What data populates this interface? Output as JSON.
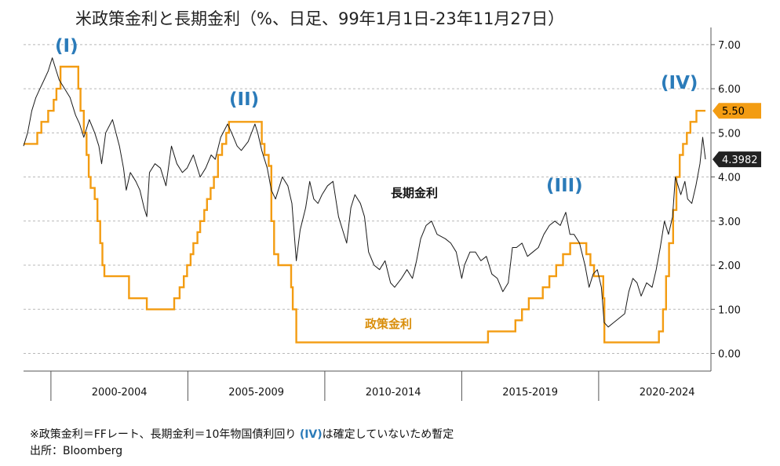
{
  "chart_data": {
    "type": "line",
    "title": "米政策金利と長期金利（%、日足、99年1月1日-23年11月27日）",
    "y_axis": {
      "ticks": [
        "7.00",
        "6.00",
        "5.00",
        "4.00",
        "3.00",
        "2.00",
        "1.00",
        "0.00"
      ],
      "tick_values": [
        7,
        6,
        5,
        4,
        3,
        2,
        1,
        0
      ],
      "ylim": [
        -0.4,
        7.3
      ],
      "position": "right",
      "grid": "dashed-horizontal"
    },
    "x_axis": {
      "range": [
        1999.0,
        2024.1
      ],
      "period_labels": [
        "2000-2004",
        "2005-2009",
        "2010-2014",
        "2015-2019",
        "2020-2024"
      ],
      "dividers": [
        2000,
        2005,
        2010,
        2015,
        2020
      ],
      "period_centers": [
        2002.5,
        2007.5,
        2012.5,
        2017.5,
        2022.5
      ]
    },
    "series": [
      {
        "name": "政策金利",
        "color": "#f39c12",
        "style": "step",
        "points": [
          [
            1999.0,
            4.75
          ],
          [
            1999.5,
            4.75
          ],
          [
            1999.5,
            5.0
          ],
          [
            1999.65,
            5.0
          ],
          [
            1999.65,
            5.25
          ],
          [
            1999.9,
            5.25
          ],
          [
            1999.9,
            5.5
          ],
          [
            2000.1,
            5.5
          ],
          [
            2000.1,
            5.75
          ],
          [
            2000.2,
            5.75
          ],
          [
            2000.2,
            6.0
          ],
          [
            2000.35,
            6.0
          ],
          [
            2000.35,
            6.5
          ],
          [
            2001.0,
            6.5
          ],
          [
            2001.0,
            6.0
          ],
          [
            2001.08,
            6.0
          ],
          [
            2001.08,
            5.5
          ],
          [
            2001.2,
            5.5
          ],
          [
            2001.2,
            5.0
          ],
          [
            2001.3,
            5.0
          ],
          [
            2001.3,
            4.5
          ],
          [
            2001.38,
            4.5
          ],
          [
            2001.38,
            4.0
          ],
          [
            2001.45,
            4.0
          ],
          [
            2001.45,
            3.75
          ],
          [
            2001.6,
            3.75
          ],
          [
            2001.6,
            3.5
          ],
          [
            2001.7,
            3.5
          ],
          [
            2001.7,
            3.0
          ],
          [
            2001.8,
            3.0
          ],
          [
            2001.8,
            2.5
          ],
          [
            2001.88,
            2.5
          ],
          [
            2001.88,
            2.0
          ],
          [
            2001.95,
            2.0
          ],
          [
            2001.95,
            1.75
          ],
          [
            2002.85,
            1.75
          ],
          [
            2002.85,
            1.25
          ],
          [
            2003.5,
            1.25
          ],
          [
            2003.5,
            1.0
          ],
          [
            2004.5,
            1.0
          ],
          [
            2004.5,
            1.25
          ],
          [
            2004.7,
            1.25
          ],
          [
            2004.7,
            1.5
          ],
          [
            2004.85,
            1.5
          ],
          [
            2004.85,
            1.75
          ],
          [
            2004.97,
            1.75
          ],
          [
            2004.97,
            2.0
          ],
          [
            2005.1,
            2.0
          ],
          [
            2005.1,
            2.25
          ],
          [
            2005.2,
            2.25
          ],
          [
            2005.2,
            2.5
          ],
          [
            2005.35,
            2.5
          ],
          [
            2005.35,
            2.75
          ],
          [
            2005.45,
            2.75
          ],
          [
            2005.45,
            3.0
          ],
          [
            2005.6,
            3.0
          ],
          [
            2005.6,
            3.25
          ],
          [
            2005.7,
            3.25
          ],
          [
            2005.7,
            3.5
          ],
          [
            2005.83,
            3.5
          ],
          [
            2005.83,
            3.75
          ],
          [
            2005.95,
            3.75
          ],
          [
            2005.95,
            4.0
          ],
          [
            2006.1,
            4.0
          ],
          [
            2006.1,
            4.5
          ],
          [
            2006.25,
            4.5
          ],
          [
            2006.25,
            4.75
          ],
          [
            2006.4,
            4.75
          ],
          [
            2006.4,
            5.0
          ],
          [
            2006.5,
            5.0
          ],
          [
            2006.5,
            5.25
          ],
          [
            2007.7,
            5.25
          ],
          [
            2007.7,
            4.75
          ],
          [
            2007.8,
            4.75
          ],
          [
            2007.8,
            4.5
          ],
          [
            2007.95,
            4.5
          ],
          [
            2007.95,
            4.25
          ],
          [
            2008.05,
            4.25
          ],
          [
            2008.05,
            3.0
          ],
          [
            2008.15,
            3.0
          ],
          [
            2008.15,
            2.25
          ],
          [
            2008.3,
            2.25
          ],
          [
            2008.3,
            2.0
          ],
          [
            2008.77,
            2.0
          ],
          [
            2008.77,
            1.5
          ],
          [
            2008.83,
            1.5
          ],
          [
            2008.83,
            1.0
          ],
          [
            2008.96,
            1.0
          ],
          [
            2008.96,
            0.25
          ],
          [
            2015.96,
            0.25
          ],
          [
            2015.96,
            0.5
          ],
          [
            2016.96,
            0.5
          ],
          [
            2016.96,
            0.75
          ],
          [
            2017.2,
            0.75
          ],
          [
            2017.2,
            1.0
          ],
          [
            2017.45,
            1.0
          ],
          [
            2017.45,
            1.25
          ],
          [
            2017.96,
            1.25
          ],
          [
            2017.96,
            1.5
          ],
          [
            2018.2,
            1.5
          ],
          [
            2018.2,
            1.75
          ],
          [
            2018.45,
            1.75
          ],
          [
            2018.45,
            2.0
          ],
          [
            2018.7,
            2.0
          ],
          [
            2018.7,
            2.25
          ],
          [
            2018.96,
            2.25
          ],
          [
            2018.96,
            2.5
          ],
          [
            2019.55,
            2.5
          ],
          [
            2019.55,
            2.25
          ],
          [
            2019.7,
            2.25
          ],
          [
            2019.7,
            2.0
          ],
          [
            2019.83,
            2.0
          ],
          [
            2019.83,
            1.75
          ],
          [
            2020.17,
            1.75
          ],
          [
            2020.17,
            1.25
          ],
          [
            2020.21,
            1.25
          ],
          [
            2020.21,
            0.25
          ],
          [
            2022.2,
            0.25
          ],
          [
            2022.2,
            0.5
          ],
          [
            2022.35,
            0.5
          ],
          [
            2022.35,
            1.0
          ],
          [
            2022.46,
            1.0
          ],
          [
            2022.46,
            1.75
          ],
          [
            2022.57,
            1.75
          ],
          [
            2022.57,
            2.5
          ],
          [
            2022.72,
            2.5
          ],
          [
            2022.72,
            3.25
          ],
          [
            2022.84,
            3.25
          ],
          [
            2022.84,
            4.0
          ],
          [
            2022.96,
            4.0
          ],
          [
            2022.96,
            4.5
          ],
          [
            2023.08,
            4.5
          ],
          [
            2023.08,
            4.75
          ],
          [
            2023.22,
            4.75
          ],
          [
            2023.22,
            5.0
          ],
          [
            2023.35,
            5.0
          ],
          [
            2023.35,
            5.25
          ],
          [
            2023.57,
            5.25
          ],
          [
            2023.57,
            5.5
          ],
          [
            2023.9,
            5.5
          ]
        ]
      },
      {
        "name": "長期金利",
        "color": "#1a1a1a",
        "style": "line",
        "points": [
          [
            1999.0,
            4.7
          ],
          [
            1999.15,
            5.0
          ],
          [
            1999.3,
            5.5
          ],
          [
            1999.45,
            5.8
          ],
          [
            1999.6,
            6.0
          ],
          [
            1999.75,
            6.2
          ],
          [
            1999.9,
            6.4
          ],
          [
            2000.05,
            6.7
          ],
          [
            2000.15,
            6.5
          ],
          [
            2000.3,
            6.2
          ],
          [
            2000.5,
            6.0
          ],
          [
            2000.7,
            5.8
          ],
          [
            2000.9,
            5.4
          ],
          [
            2001.05,
            5.2
          ],
          [
            2001.2,
            4.9
          ],
          [
            2001.4,
            5.3
          ],
          [
            2001.6,
            5.0
          ],
          [
            2001.75,
            4.7
          ],
          [
            2001.85,
            4.3
          ],
          [
            2002.0,
            5.0
          ],
          [
            2002.25,
            5.3
          ],
          [
            2002.5,
            4.7
          ],
          [
            2002.65,
            4.2
          ],
          [
            2002.75,
            3.7
          ],
          [
            2002.9,
            4.1
          ],
          [
            2003.1,
            3.9
          ],
          [
            2003.25,
            3.7
          ],
          [
            2003.4,
            3.3
          ],
          [
            2003.5,
            3.1
          ],
          [
            2003.6,
            4.1
          ],
          [
            2003.8,
            4.3
          ],
          [
            2004.0,
            4.2
          ],
          [
            2004.2,
            3.8
          ],
          [
            2004.4,
            4.7
          ],
          [
            2004.6,
            4.3
          ],
          [
            2004.8,
            4.1
          ],
          [
            2004.97,
            4.2
          ],
          [
            2005.2,
            4.5
          ],
          [
            2005.45,
            4.0
          ],
          [
            2005.65,
            4.2
          ],
          [
            2005.85,
            4.5
          ],
          [
            2006.0,
            4.4
          ],
          [
            2006.2,
            4.9
          ],
          [
            2006.45,
            5.2
          ],
          [
            2006.6,
            5.0
          ],
          [
            2006.8,
            4.7
          ],
          [
            2006.95,
            4.6
          ],
          [
            2007.2,
            4.8
          ],
          [
            2007.45,
            5.2
          ],
          [
            2007.55,
            5.0
          ],
          [
            2007.7,
            4.6
          ],
          [
            2007.9,
            4.2
          ],
          [
            2008.05,
            3.7
          ],
          [
            2008.2,
            3.5
          ],
          [
            2008.45,
            4.0
          ],
          [
            2008.65,
            3.8
          ],
          [
            2008.8,
            3.4
          ],
          [
            2008.96,
            2.1
          ],
          [
            2009.1,
            2.8
          ],
          [
            2009.3,
            3.3
          ],
          [
            2009.45,
            3.9
          ],
          [
            2009.6,
            3.5
          ],
          [
            2009.75,
            3.4
          ],
          [
            2009.9,
            3.6
          ],
          [
            2010.1,
            3.8
          ],
          [
            2010.3,
            3.9
          ],
          [
            2010.5,
            3.1
          ],
          [
            2010.65,
            2.8
          ],
          [
            2010.8,
            2.5
          ],
          [
            2010.95,
            3.3
          ],
          [
            2011.1,
            3.6
          ],
          [
            2011.3,
            3.4
          ],
          [
            2011.45,
            3.1
          ],
          [
            2011.6,
            2.3
          ],
          [
            2011.8,
            2.0
          ],
          [
            2012.0,
            1.9
          ],
          [
            2012.2,
            2.1
          ],
          [
            2012.4,
            1.6
          ],
          [
            2012.55,
            1.5
          ],
          [
            2012.8,
            1.7
          ],
          [
            2013.0,
            1.9
          ],
          [
            2013.2,
            1.7
          ],
          [
            2013.35,
            2.1
          ],
          [
            2013.5,
            2.6
          ],
          [
            2013.7,
            2.9
          ],
          [
            2013.9,
            3.0
          ],
          [
            2014.1,
            2.7
          ],
          [
            2014.4,
            2.6
          ],
          [
            2014.6,
            2.5
          ],
          [
            2014.8,
            2.3
          ],
          [
            2015.0,
            1.7
          ],
          [
            2015.1,
            2.0
          ],
          [
            2015.3,
            2.3
          ],
          [
            2015.5,
            2.3
          ],
          [
            2015.7,
            2.1
          ],
          [
            2015.9,
            2.2
          ],
          [
            2016.1,
            1.8
          ],
          [
            2016.3,
            1.7
          ],
          [
            2016.5,
            1.4
          ],
          [
            2016.7,
            1.6
          ],
          [
            2016.85,
            2.4
          ],
          [
            2017.0,
            2.4
          ],
          [
            2017.2,
            2.5
          ],
          [
            2017.4,
            2.2
          ],
          [
            2017.6,
            2.3
          ],
          [
            2017.8,
            2.4
          ],
          [
            2018.0,
            2.7
          ],
          [
            2018.2,
            2.9
          ],
          [
            2018.4,
            3.0
          ],
          [
            2018.6,
            2.9
          ],
          [
            2018.8,
            3.2
          ],
          [
            2018.95,
            2.7
          ],
          [
            2019.1,
            2.7
          ],
          [
            2019.3,
            2.5
          ],
          [
            2019.5,
            2.0
          ],
          [
            2019.65,
            1.5
          ],
          [
            2019.8,
            1.8
          ],
          [
            2019.95,
            1.9
          ],
          [
            2020.1,
            1.5
          ],
          [
            2020.2,
            0.7
          ],
          [
            2020.35,
            0.6
          ],
          [
            2020.55,
            0.7
          ],
          [
            2020.75,
            0.8
          ],
          [
            2020.95,
            0.9
          ],
          [
            2021.1,
            1.4
          ],
          [
            2021.25,
            1.7
          ],
          [
            2021.4,
            1.6
          ],
          [
            2021.55,
            1.3
          ],
          [
            2021.75,
            1.6
          ],
          [
            2021.95,
            1.5
          ],
          [
            2022.1,
            1.9
          ],
          [
            2022.25,
            2.4
          ],
          [
            2022.4,
            3.0
          ],
          [
            2022.55,
            2.7
          ],
          [
            2022.7,
            3.1
          ],
          [
            2022.8,
            4.0
          ],
          [
            2022.9,
            3.8
          ],
          [
            2023.0,
            3.6
          ],
          [
            2023.15,
            3.9
          ],
          [
            2023.25,
            3.5
          ],
          [
            2023.4,
            3.4
          ],
          [
            2023.55,
            3.8
          ],
          [
            2023.7,
            4.3
          ],
          [
            2023.8,
            4.9
          ],
          [
            2023.9,
            4.4
          ]
        ]
      }
    ],
    "series_labels": {
      "policy": "政策金利",
      "long_term": "長期金利"
    },
    "last_values": {
      "policy": "5.50",
      "long_term": "4.3982"
    },
    "annotations": [
      "(I)",
      "(II)",
      "(III)",
      "(IV)"
    ]
  },
  "footnotes": {
    "line1_a": "※政策金利＝FFレート、長期金利＝10年物国債利回り ",
    "line1_hl": "(IV)",
    "line1_b": "は確定していないため暫定",
    "line2": "出所：Bloomberg"
  }
}
